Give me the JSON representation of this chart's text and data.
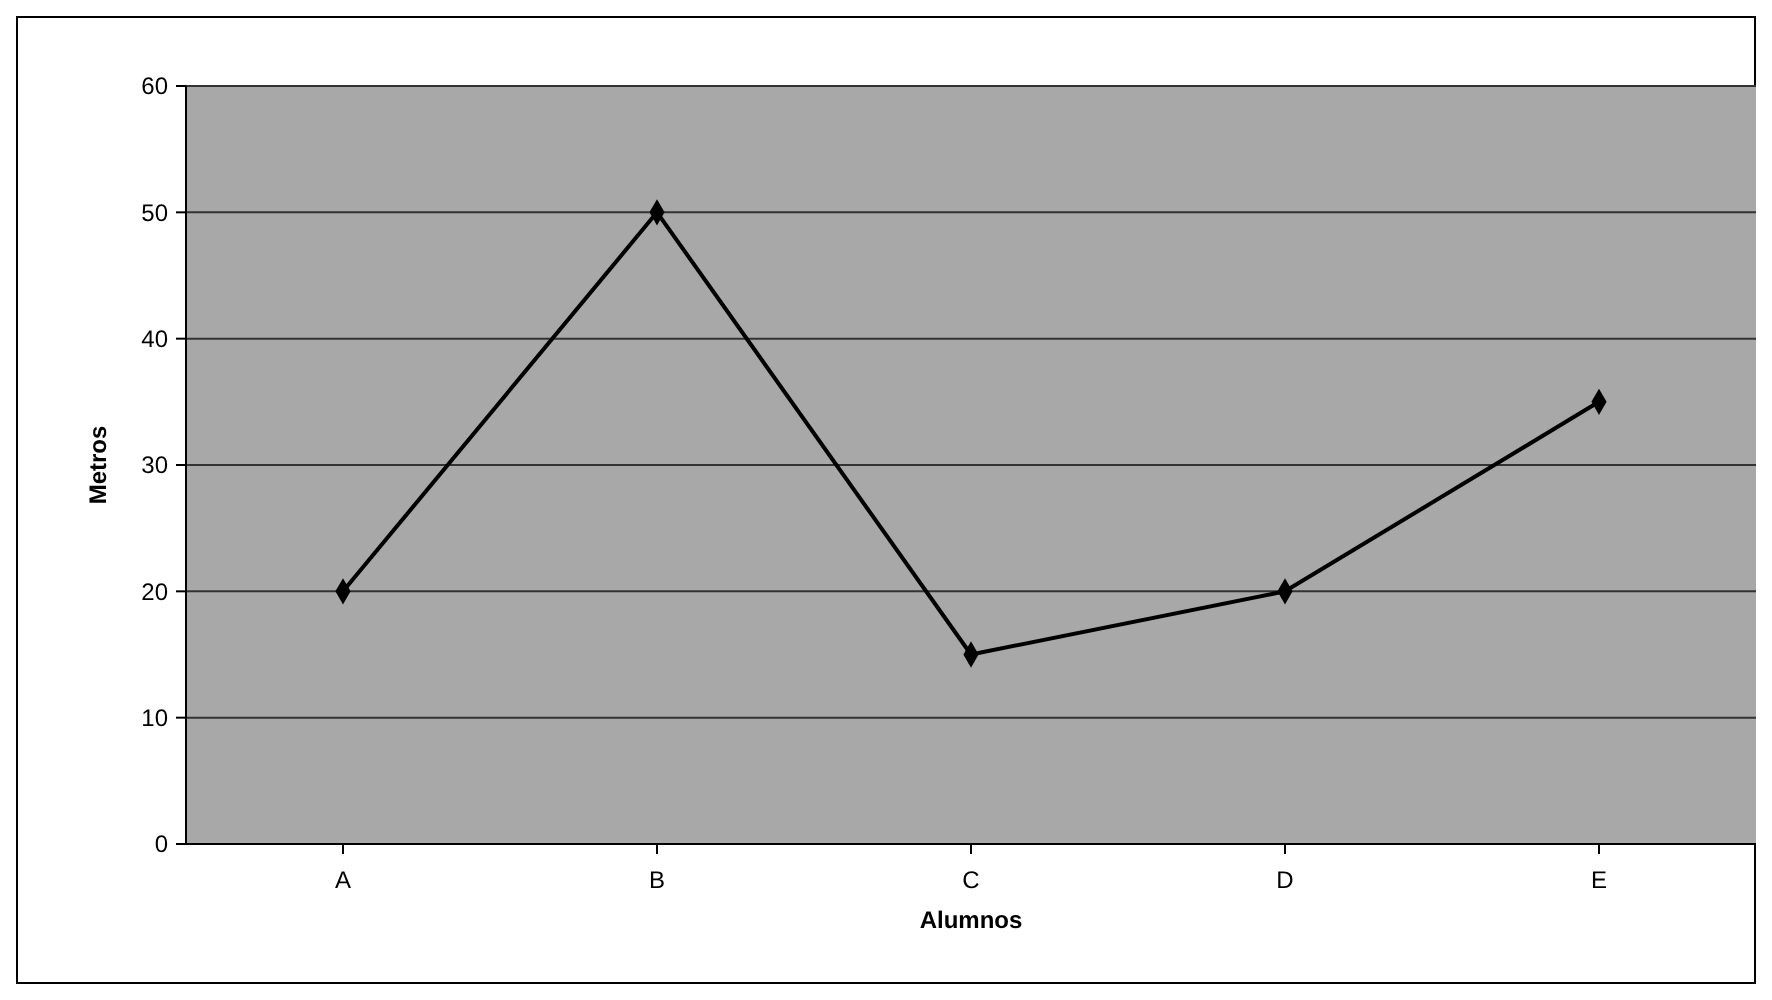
{
  "chart_data": {
    "type": "line",
    "xlabel": "Alumnos",
    "ylabel": "Metros",
    "categories": [
      "A",
      "B",
      "C",
      "D",
      "E"
    ],
    "series": [
      {
        "color": "#000000",
        "values": [
          20,
          50,
          15,
          20,
          35
        ]
      }
    ],
    "ylim": [
      0,
      60
    ],
    "yticks": [
      0,
      10,
      20,
      30,
      40,
      50,
      60
    ],
    "grid": "y",
    "marker": "diamond",
    "line_style": "solid"
  }
}
